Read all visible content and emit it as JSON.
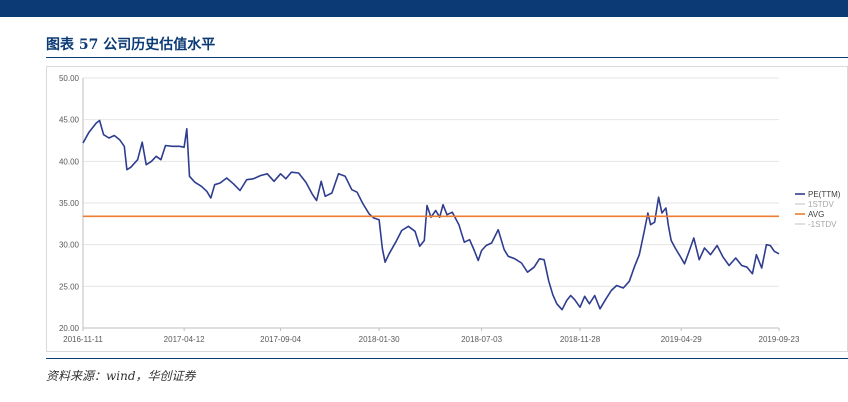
{
  "header": {
    "title": "图表 57   公司历史估值水平"
  },
  "footer": {
    "source": "资料来源：wind，华创证券"
  },
  "colors": {
    "brand": "#0b3a75",
    "pe_line": "#2e3d8f",
    "avg_line": "#ed7d31",
    "std_line": "#d9d9d9",
    "grid": "#e6e6e6"
  },
  "chart_data": {
    "type": "line",
    "ylim": [
      20,
      50
    ],
    "yticks": [
      "20.00",
      "25.00",
      "30.00",
      "35.00",
      "40.00",
      "45.00",
      "50.00"
    ],
    "xticks": [
      "2016-11-11",
      "2017-04-12",
      "2017-09-04",
      "2018-01-30",
      "2018-07-03",
      "2018-11-28",
      "2019-04-29",
      "2019-09-23"
    ],
    "x_range": [
      "2016-11-11",
      "2019-09-23"
    ],
    "grid": true,
    "legend_position": "right",
    "series": [
      {
        "name": "PE(TTM)",
        "color": "#2e3d8f",
        "points": [
          [
            "2016-11-11",
            42.2
          ],
          [
            "2016-11-20",
            43.5
          ],
          [
            "2016-12-01",
            44.6
          ],
          [
            "2016-12-06",
            44.9
          ],
          [
            "2016-12-12",
            43.2
          ],
          [
            "2016-12-20",
            42.8
          ],
          [
            "2016-12-28",
            43.1
          ],
          [
            "2017-01-05",
            42.6
          ],
          [
            "2017-01-12",
            41.8
          ],
          [
            "2017-01-16",
            39.0
          ],
          [
            "2017-01-22",
            39.3
          ],
          [
            "2017-02-01",
            40.2
          ],
          [
            "2017-02-08",
            42.3
          ],
          [
            "2017-02-14",
            39.6
          ],
          [
            "2017-02-22",
            40.0
          ],
          [
            "2017-03-01",
            40.6
          ],
          [
            "2017-03-08",
            40.2
          ],
          [
            "2017-03-15",
            41.9
          ],
          [
            "2017-03-25",
            41.8
          ],
          [
            "2017-04-05",
            41.8
          ],
          [
            "2017-04-12",
            41.7
          ],
          [
            "2017-04-16",
            43.9
          ],
          [
            "2017-04-20",
            38.2
          ],
          [
            "2017-04-28",
            37.5
          ],
          [
            "2017-05-08",
            37.0
          ],
          [
            "2017-05-16",
            36.4
          ],
          [
            "2017-05-22",
            35.6
          ],
          [
            "2017-05-28",
            37.2
          ],
          [
            "2017-06-05",
            37.4
          ],
          [
            "2017-06-15",
            38.0
          ],
          [
            "2017-06-25",
            37.3
          ],
          [
            "2017-07-05",
            36.5
          ],
          [
            "2017-07-15",
            37.8
          ],
          [
            "2017-07-25",
            37.9
          ],
          [
            "2017-08-05",
            38.3
          ],
          [
            "2017-08-15",
            38.5
          ],
          [
            "2017-08-25",
            37.6
          ],
          [
            "2017-09-04",
            38.5
          ],
          [
            "2017-09-12",
            37.9
          ],
          [
            "2017-09-20",
            38.7
          ],
          [
            "2017-10-01",
            38.6
          ],
          [
            "2017-10-12",
            37.5
          ],
          [
            "2017-10-22",
            36.0
          ],
          [
            "2017-10-28",
            35.3
          ],
          [
            "2017-11-04",
            37.6
          ],
          [
            "2017-11-10",
            35.8
          ],
          [
            "2017-11-20",
            36.2
          ],
          [
            "2017-11-30",
            38.5
          ],
          [
            "2017-12-10",
            38.2
          ],
          [
            "2017-12-20",
            36.6
          ],
          [
            "2017-12-28",
            36.3
          ],
          [
            "2018-01-05",
            35.0
          ],
          [
            "2018-01-15",
            33.7
          ],
          [
            "2018-01-22",
            33.2
          ],
          [
            "2018-01-30",
            33.0
          ],
          [
            "2018-02-04",
            29.5
          ],
          [
            "2018-02-08",
            27.9
          ],
          [
            "2018-02-14",
            28.9
          ],
          [
            "2018-02-24",
            30.3
          ],
          [
            "2018-03-05",
            31.7
          ],
          [
            "2018-03-15",
            32.2
          ],
          [
            "2018-03-25",
            31.6
          ],
          [
            "2018-04-01",
            29.8
          ],
          [
            "2018-04-08",
            30.5
          ],
          [
            "2018-04-12",
            34.7
          ],
          [
            "2018-04-18",
            33.3
          ],
          [
            "2018-04-25",
            34.1
          ],
          [
            "2018-05-01",
            33.3
          ],
          [
            "2018-05-06",
            34.8
          ],
          [
            "2018-05-12",
            33.6
          ],
          [
            "2018-05-20",
            33.9
          ],
          [
            "2018-05-30",
            32.4
          ],
          [
            "2018-06-07",
            30.3
          ],
          [
            "2018-06-15",
            30.6
          ],
          [
            "2018-06-22",
            29.3
          ],
          [
            "2018-06-28",
            28.1
          ],
          [
            "2018-07-03",
            29.3
          ],
          [
            "2018-07-10",
            29.9
          ],
          [
            "2018-07-18",
            30.2
          ],
          [
            "2018-07-28",
            31.8
          ],
          [
            "2018-08-06",
            29.4
          ],
          [
            "2018-08-12",
            28.6
          ],
          [
            "2018-08-22",
            28.3
          ],
          [
            "2018-09-01",
            27.8
          ],
          [
            "2018-09-10",
            26.7
          ],
          [
            "2018-09-20",
            27.3
          ],
          [
            "2018-09-28",
            28.3
          ],
          [
            "2018-10-05",
            28.2
          ],
          [
            "2018-10-12",
            25.6
          ],
          [
            "2018-10-18",
            24.0
          ],
          [
            "2018-10-24",
            22.9
          ],
          [
            "2018-11-01",
            22.2
          ],
          [
            "2018-11-08",
            23.3
          ],
          [
            "2018-11-14",
            23.9
          ],
          [
            "2018-11-20",
            23.4
          ],
          [
            "2018-11-28",
            22.5
          ],
          [
            "2018-12-05",
            23.8
          ],
          [
            "2018-12-12",
            22.9
          ],
          [
            "2018-12-20",
            23.9
          ],
          [
            "2018-12-28",
            22.3
          ],
          [
            "2019-01-06",
            23.5
          ],
          [
            "2019-01-14",
            24.5
          ],
          [
            "2019-01-22",
            25.1
          ],
          [
            "2019-02-01",
            24.8
          ],
          [
            "2019-02-10",
            25.6
          ],
          [
            "2019-02-18",
            27.4
          ],
          [
            "2019-02-25",
            28.8
          ],
          [
            "2019-03-04",
            31.4
          ],
          [
            "2019-03-10",
            33.8
          ],
          [
            "2019-03-14",
            32.4
          ],
          [
            "2019-03-20",
            32.7
          ],
          [
            "2019-03-26",
            35.7
          ],
          [
            "2019-03-31",
            33.8
          ],
          [
            "2019-04-06",
            34.4
          ],
          [
            "2019-04-10",
            32.2
          ],
          [
            "2019-04-14",
            30.5
          ],
          [
            "2019-04-20",
            29.6
          ],
          [
            "2019-04-29",
            28.4
          ],
          [
            "2019-05-04",
            27.7
          ],
          [
            "2019-05-10",
            29.0
          ],
          [
            "2019-05-18",
            30.8
          ],
          [
            "2019-05-26",
            28.2
          ],
          [
            "2019-06-03",
            29.6
          ],
          [
            "2019-06-12",
            28.8
          ],
          [
            "2019-06-22",
            29.9
          ],
          [
            "2019-07-01",
            28.5
          ],
          [
            "2019-07-10",
            27.5
          ],
          [
            "2019-07-20",
            28.4
          ],
          [
            "2019-07-29",
            27.5
          ],
          [
            "2019-08-06",
            27.3
          ],
          [
            "2019-08-14",
            26.5
          ],
          [
            "2019-08-20",
            28.8
          ],
          [
            "2019-08-28",
            27.2
          ],
          [
            "2019-09-04",
            30.0
          ],
          [
            "2019-09-10",
            29.9
          ],
          [
            "2019-09-16",
            29.2
          ],
          [
            "2019-09-23",
            28.9
          ]
        ]
      },
      {
        "name": "1STDV",
        "color": "#d9d9d9",
        "value": null
      },
      {
        "name": "AVG",
        "color": "#ed7d31",
        "value": 33.4
      },
      {
        "name": "-1STDV",
        "color": "#d9d9d9",
        "value": null
      }
    ]
  }
}
